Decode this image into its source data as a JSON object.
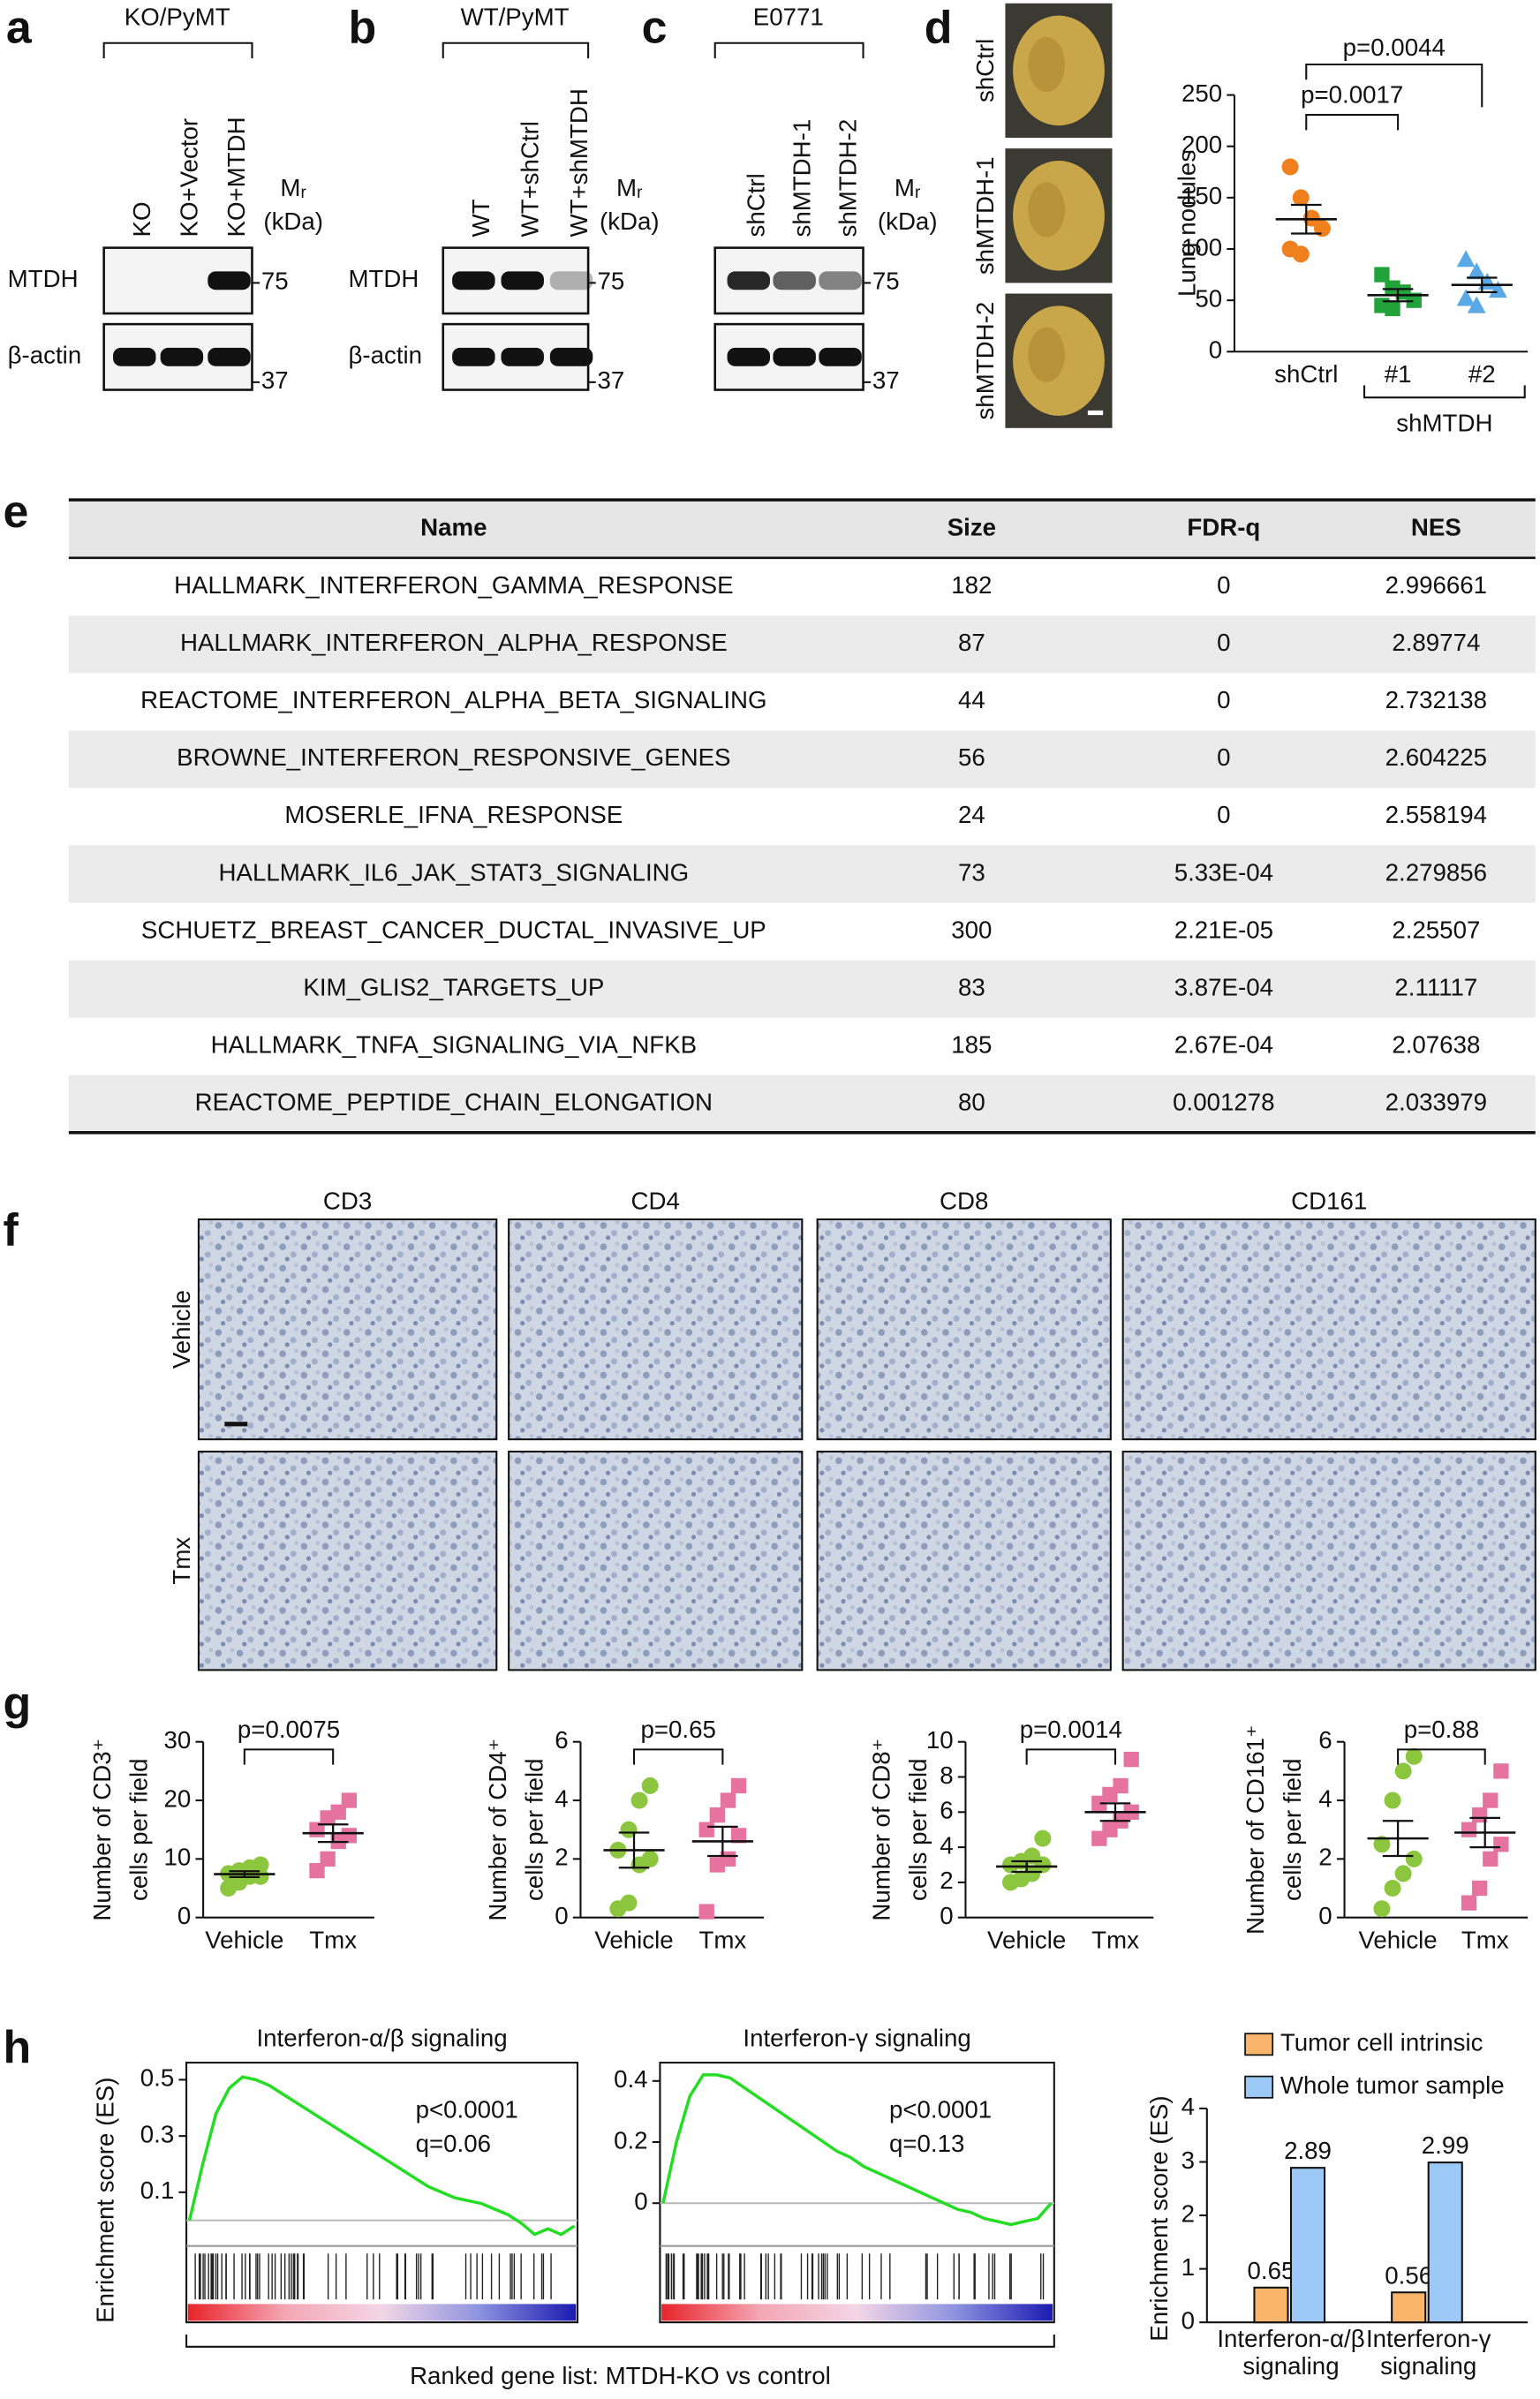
{
  "panel_labels": [
    "a",
    "b",
    "c",
    "d",
    "e",
    "f",
    "g",
    "h"
  ],
  "blots": [
    {
      "header": "KO/PyMT",
      "lanes": [
        "KO",
        "KO+Vector",
        "KO+MTDH"
      ],
      "rows": [
        "MTDH",
        "β-actin"
      ],
      "mr": "Mᵣ",
      "kda": "(kDa)",
      "markers": [
        "75",
        "37"
      ]
    },
    {
      "header": "WT/PyMT",
      "lanes": [
        "WT",
        "WT+shCtrl",
        "WT+shMTDH"
      ],
      "rows": [
        "MTDH",
        "β-actin"
      ],
      "mr": "Mᵣ",
      "kda": "(kDa)",
      "markers": [
        "75",
        "37"
      ]
    },
    {
      "header": "E0771",
      "lanes": [
        "shCtrl",
        "shMTDH-1",
        "shMTDH-2"
      ],
      "rows": [],
      "mr": "Mᵣ",
      "kda": "(kDa)",
      "markers": [
        "75",
        "37"
      ]
    }
  ],
  "lung_images": {
    "labels": [
      "shCtrl",
      "shMTDH-1",
      "shMTDH-2"
    ]
  },
  "table": {
    "header": [
      "Name",
      "Size",
      "FDR-q",
      "NES"
    ],
    "rows": [
      [
        "HALLMARK_INTERFERON_GAMMA_RESPONSE",
        "182",
        "0",
        "2.996661"
      ],
      [
        "HALLMARK_INTERFERON_ALPHA_RESPONSE",
        "87",
        "0",
        "2.89774"
      ],
      [
        "REACTOME_INTERFERON_ALPHA_BETA_SIGNALING",
        "44",
        "0",
        "2.732138"
      ],
      [
        "BROWNE_INTERFERON_RESPONSIVE_GENES",
        "56",
        "0",
        "2.604225"
      ],
      [
        "MOSERLE_IFNA_RESPONSE",
        "24",
        "0",
        "2.558194"
      ],
      [
        "HALLMARK_IL6_JAK_STAT3_SIGNALING",
        "73",
        "5.33E-04",
        "2.279856"
      ],
      [
        "SCHUETZ_BREAST_CANCER_DUCTAL_INVASIVE_UP",
        "300",
        "2.21E-05",
        "2.25507"
      ],
      [
        "KIM_GLIS2_TARGETS_UP",
        "83",
        "3.87E-04",
        "2.11117"
      ],
      [
        "HALLMARK_TNFA_SIGNALING_VIA_NFKB",
        "185",
        "2.67E-04",
        "2.07638"
      ],
      [
        "REACTOME_PEPTIDE_CHAIN_ELONGATION",
        "80",
        "0.001278",
        "2.033979"
      ]
    ]
  },
  "ihc": {
    "columns": [
      "CD3",
      "CD4",
      "CD8",
      "CD161"
    ],
    "rows": [
      "Vehicle",
      "Tmx"
    ]
  },
  "gsea_xlabel": "Ranked gene list: MTDH-KO vs control",
  "chart_data": [
    {
      "type": "dot",
      "ylabel": "Lung nodules",
      "categories": [
        "shCtrl",
        "#1",
        "#2"
      ],
      "group_label": "shMTDH",
      "colors": [
        "#f07f1e",
        "#22a33a",
        "#5aa8e6"
      ],
      "markers": [
        "circle",
        "square",
        "triangle"
      ],
      "points": [
        [
          180,
          150,
          130,
          120,
          100,
          95
        ],
        [
          75,
          62,
          58,
          50,
          45,
          42
        ],
        [
          90,
          78,
          68,
          60,
          52,
          45
        ]
      ],
      "means": [
        129,
        55,
        65
      ],
      "sems": [
        14,
        6,
        7
      ],
      "ylim": [
        0,
        250
      ],
      "yticks": [
        0,
        50,
        100,
        150,
        200,
        250
      ],
      "comparisons": [
        "p=0.0017",
        "p=0.0044"
      ]
    },
    {
      "type": "dot",
      "ylabel": [
        "Number of CD3⁺",
        "cells per field"
      ],
      "categories": [
        "Vehicle",
        "Tmx"
      ],
      "colors": [
        "#8cc63f",
        "#e6739f"
      ],
      "markers": [
        "circle",
        "square"
      ],
      "points": [
        [
          5,
          6,
          7,
          7,
          7.5,
          8,
          8.5,
          9
        ],
        [
          8,
          10,
          13,
          14,
          15,
          17,
          18,
          20
        ]
      ],
      "means": [
        7.4,
        14.4
      ],
      "sems": [
        0.5,
        1.5
      ],
      "ylim": [
        0,
        30
      ],
      "yticks": [
        0,
        10,
        20,
        30
      ],
      "comparisons": [
        "p=0.0075"
      ]
    },
    {
      "type": "dot",
      "ylabel": [
        "Number of CD4⁺",
        "cells per field"
      ],
      "categories": [
        "Vehicle",
        "Tmx"
      ],
      "colors": [
        "#8cc63f",
        "#e6739f"
      ],
      "markers": [
        "circle",
        "square"
      ],
      "points": [
        [
          0.3,
          0.5,
          1.8,
          2,
          2.3,
          3,
          4,
          4.5
        ],
        [
          0.2,
          1.8,
          2,
          2.8,
          3,
          3.5,
          4,
          4.5
        ]
      ],
      "means": [
        2.3,
        2.6
      ],
      "sems": [
        0.6,
        0.5
      ],
      "ylim": [
        0,
        6
      ],
      "yticks": [
        0,
        2,
        4,
        6
      ],
      "comparisons": [
        "p=0.65"
      ]
    },
    {
      "type": "dot",
      "ylabel": [
        "Number of CD8⁺",
        "cells per field"
      ],
      "categories": [
        "Vehicle",
        "Tmx"
      ],
      "colors": [
        "#8cc63f",
        "#e6739f"
      ],
      "markers": [
        "circle",
        "square"
      ],
      "points": [
        [
          2,
          2.2,
          2.5,
          3,
          3,
          3.2,
          3.5,
          4.5
        ],
        [
          4.5,
          5,
          5.5,
          6,
          6.5,
          7,
          7.5,
          9
        ]
      ],
      "means": [
        2.9,
        6.0
      ],
      "sems": [
        0.3,
        0.5
      ],
      "ylim": [
        0,
        10
      ],
      "yticks": [
        0,
        2,
        4,
        6,
        8,
        10
      ],
      "comparisons": [
        "p=0.0014"
      ]
    },
    {
      "type": "dot",
      "ylabel": [
        "Number of CD161⁺",
        "cells per field"
      ],
      "categories": [
        "Vehicle",
        "Tmx"
      ],
      "colors": [
        "#8cc63f",
        "#e6739f"
      ],
      "markers": [
        "circle",
        "square"
      ],
      "points": [
        [
          0.3,
          1,
          1.5,
          2,
          2.5,
          4,
          5,
          5.5
        ],
        [
          0.5,
          1,
          2,
          2.5,
          3,
          3.5,
          4,
          5
        ]
      ],
      "means": [
        2.7,
        2.9
      ],
      "sems": [
        0.6,
        0.5
      ],
      "ylim": [
        0,
        6
      ],
      "yticks": [
        0,
        2,
        4,
        6
      ],
      "comparisons": [
        "p=0.88"
      ]
    },
    {
      "type": "line",
      "title": "Interferon-α/β signaling",
      "ylabel": "Enrichment score (ES)",
      "color": "#22dd22",
      "values": [
        0,
        0.2,
        0.38,
        0.47,
        0.51,
        0.5,
        0.48,
        0.45,
        0.42,
        0.39,
        0.36,
        0.33,
        0.3,
        0.27,
        0.24,
        0.21,
        0.18,
        0.15,
        0.12,
        0.1,
        0.08,
        0.07,
        0.06,
        0.04,
        0.02,
        -0.01,
        -0.05,
        -0.03,
        -0.05,
        -0.02
      ],
      "ylim": [
        -0.08,
        0.55
      ],
      "yticks": [
        0.1,
        0.3,
        0.5
      ],
      "annotations": [
        "p<0.0001",
        "q=0.06"
      ]
    },
    {
      "type": "line",
      "title": "Interferon-γ signaling",
      "color": "#22dd22",
      "values": [
        0,
        0.2,
        0.35,
        0.42,
        0.42,
        0.41,
        0.38,
        0.35,
        0.32,
        0.29,
        0.26,
        0.23,
        0.2,
        0.17,
        0.15,
        0.12,
        0.1,
        0.08,
        0.06,
        0.04,
        0.02,
        0,
        -0.02,
        -0.03,
        -0.05,
        -0.06,
        -0.07,
        -0.06,
        -0.05,
        0
      ],
      "ylim": [
        -0.13,
        0.45
      ],
      "yticks": [
        0,
        0.2,
        0.4
      ],
      "annotations": [
        "p<0.0001",
        "q=0.13"
      ]
    },
    {
      "type": "bar",
      "ylabel": "Enrichment score (ES)",
      "categories": [
        "Interferon-α/β signaling",
        "Interferon-γ signaling"
      ],
      "series": [
        {
          "name": "Tumor cell intrinsic",
          "color": "#f9b56b",
          "values": [
            0.65,
            0.56
          ]
        },
        {
          "name": "Whole tumor sample",
          "color": "#9cc9f5",
          "values": [
            2.89,
            2.99
          ]
        }
      ],
      "ylim": [
        0,
        4
      ],
      "yticks": [
        0,
        1,
        2,
        3,
        4
      ],
      "data_labels": true,
      "legend": "top"
    }
  ]
}
